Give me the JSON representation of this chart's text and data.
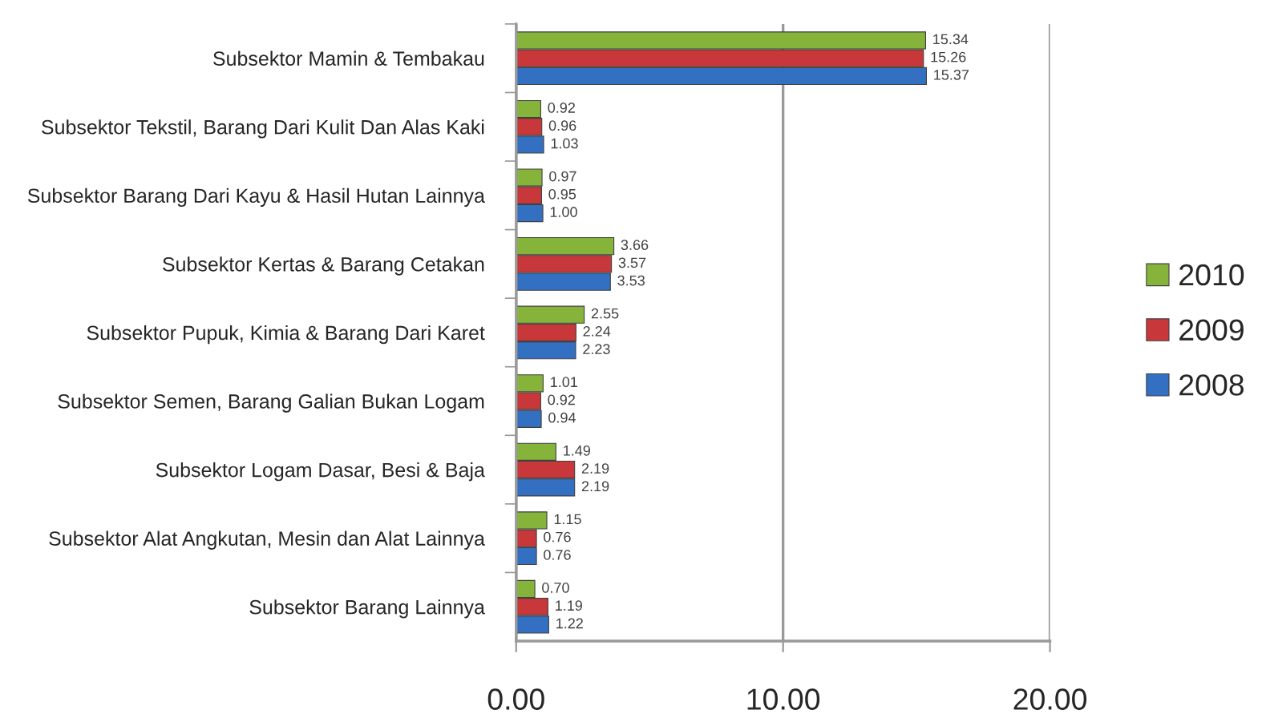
{
  "chart_data": {
    "type": "bar",
    "orientation": "horizontal",
    "categories": [
      "Subsektor Mamin & Tembakau",
      "Subsektor Tekstil, Barang Dari Kulit Dan Alas Kaki",
      "Subsektor Barang Dari Kayu & Hasil Hutan Lainnya",
      "Subsektor Kertas & Barang Cetakan",
      "Subsektor Pupuk, Kimia & Barang Dari Karet",
      "Subsektor Semen, Barang Galian Bukan Logam",
      "Subsektor Logam Dasar, Besi & Baja",
      "Subsektor Alat Angkutan, Mesin dan Alat Lainnya",
      "Subsektor Barang Lainnya"
    ],
    "series": [
      {
        "name": "2010",
        "color": "#86b43a",
        "values": [
          15.34,
          0.92,
          0.97,
          3.66,
          2.55,
          1.01,
          1.49,
          1.15,
          0.7
        ],
        "value_labels": [
          "15.34",
          "0.92",
          "0.97",
          "3.66",
          "2.55",
          "1.01",
          "1.49",
          "1.15",
          "0.70"
        ]
      },
      {
        "name": "2009",
        "color": "#c8383a",
        "values": [
          15.26,
          0.96,
          0.95,
          3.57,
          2.24,
          0.92,
          2.19,
          0.76,
          1.19
        ],
        "value_labels": [
          "15.26",
          "0.96",
          "0.95",
          "3.57",
          "2.24",
          "0.92",
          "2.19",
          "0.76",
          "1.19"
        ]
      },
      {
        "name": "2008",
        "color": "#3470c2",
        "values": [
          15.37,
          1.03,
          1.0,
          3.53,
          2.23,
          0.94,
          2.19,
          0.76,
          1.22
        ],
        "value_labels": [
          "15.37",
          "1.03",
          "1.00",
          "3.53",
          "2.23",
          "0.94",
          "2.19",
          "0.76",
          "1.22"
        ]
      }
    ],
    "xlim": [
      0,
      20
    ],
    "xticks": [
      {
        "value": 0,
        "label": "0.00"
      },
      {
        "value": 10,
        "label": "10.00"
      },
      {
        "value": 20,
        "label": "20.00"
      }
    ],
    "grid": "x",
    "legend": "right"
  }
}
